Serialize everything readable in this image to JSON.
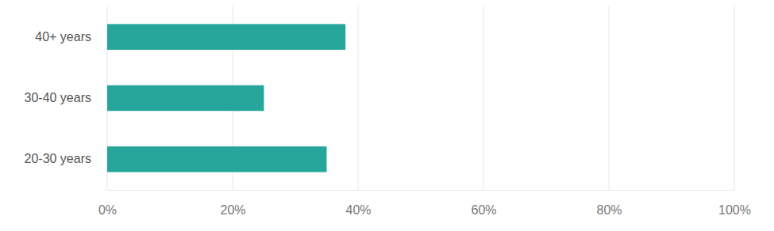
{
  "chart_data": {
    "type": "bar",
    "orientation": "horizontal",
    "categories": [
      "40+ years",
      "30-40 years",
      "20-30 years"
    ],
    "values": [
      38,
      25,
      35
    ],
    "color": "#26a69a",
    "xlim": [
      0,
      100
    ],
    "xticks": [
      {
        "value": 0,
        "label": "0%"
      },
      {
        "value": 20,
        "label": "20%"
      },
      {
        "value": 40,
        "label": "40%"
      },
      {
        "value": 60,
        "label": "60%"
      },
      {
        "value": 80,
        "label": "80%"
      },
      {
        "value": 100,
        "label": "100%"
      }
    ],
    "grid": true
  }
}
